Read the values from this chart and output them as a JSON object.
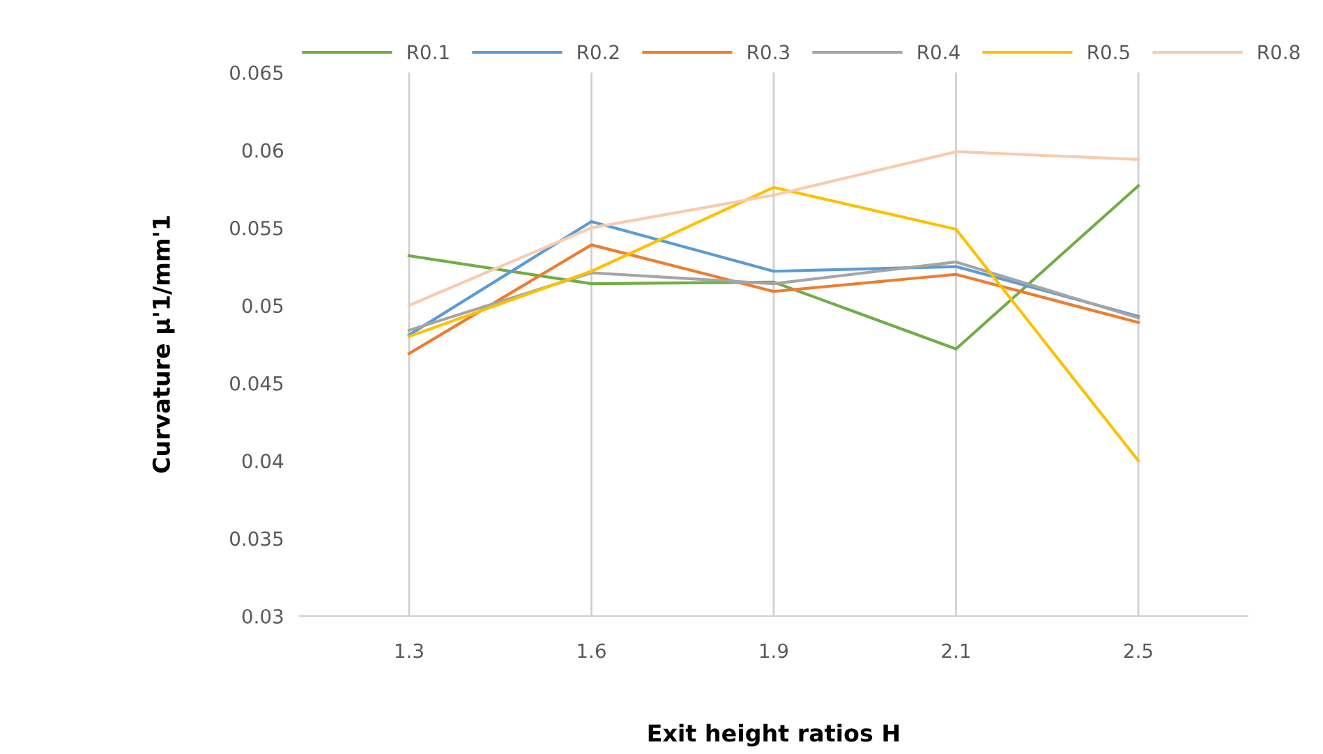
{
  "chart_data": {
    "type": "line",
    "xlabel": "Exit height ratios H",
    "ylabel": "Curvature µ'1/mm'1",
    "categories": [
      "1.3",
      "1.6",
      "1.9",
      "2.1",
      "2.5"
    ],
    "series": [
      {
        "name": "R0.1",
        "color": "#70ad47",
        "values": [
          0.0532,
          0.0514,
          0.0515,
          0.0472,
          0.0577
        ]
      },
      {
        "name": "R0.2",
        "color": "#5b9bd5",
        "values": [
          0.0481,
          0.0554,
          0.0522,
          0.0525,
          0.0493
        ]
      },
      {
        "name": "R0.3",
        "color": "#ed7d31",
        "values": [
          0.0469,
          0.0539,
          0.0509,
          0.052,
          0.0489
        ]
      },
      {
        "name": "R0.4",
        "color": "#a5a5a5",
        "values": [
          0.0484,
          0.0521,
          0.0514,
          0.0528,
          0.0492
        ]
      },
      {
        "name": "R0.5",
        "color": "#ffc000",
        "values": [
          0.048,
          0.0522,
          0.0576,
          0.0549,
          0.04
        ]
      },
      {
        "name": "R0.8",
        "color": "#f8cbad",
        "values": [
          0.05,
          0.055,
          0.0571,
          0.0599,
          0.0594
        ]
      }
    ],
    "ylim": [
      0.03,
      0.065
    ],
    "yticks": [
      0.03,
      0.035,
      0.04,
      0.045,
      0.05,
      0.055,
      0.06,
      0.065
    ],
    "grid": "x",
    "legend": "top",
    "marker": "none",
    "line_style": "solid"
  }
}
